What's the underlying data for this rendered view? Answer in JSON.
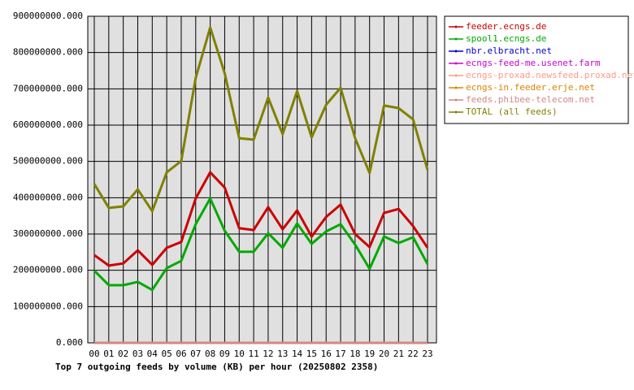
{
  "chart_data": {
    "type": "line",
    "title": "Top 7 outgoing feeds by volume (KB) per hour (20250802 2358)",
    "categories": [
      "00",
      "01",
      "02",
      "03",
      "04",
      "05",
      "06",
      "07",
      "08",
      "09",
      "10",
      "11",
      "12",
      "13",
      "14",
      "15",
      "16",
      "17",
      "18",
      "19",
      "20",
      "21",
      "22",
      "23"
    ],
    "series": [
      {
        "name": "feeder.ecngs.de",
        "color": "#cc0000",
        "values": [
          242000000,
          213000000,
          219000000,
          255000000,
          215000000,
          262000000,
          278000000,
          398000000,
          470000000,
          428000000,
          316000000,
          311000000,
          374000000,
          313000000,
          365000000,
          293000000,
          347000000,
          381000000,
          300000000,
          264000000,
          358000000,
          369000000,
          322000000,
          262000000
        ]
      },
      {
        "name": "spool1.ecngs.de",
        "color": "#00aa00",
        "values": [
          199000000,
          159000000,
          159000000,
          168000000,
          146000000,
          206000000,
          226000000,
          327000000,
          398000000,
          309000000,
          251000000,
          251000000,
          302000000,
          262000000,
          329000000,
          273000000,
          307000000,
          327000000,
          271000000,
          204000000,
          293000000,
          275000000,
          291000000,
          217000000
        ]
      },
      {
        "name": "nbr.elbracht.net",
        "color": "#0000cc",
        "values": [
          0,
          0,
          0,
          0,
          0,
          0,
          0,
          0,
          0,
          0,
          0,
          0,
          0,
          0,
          0,
          0,
          0,
          0,
          0,
          0,
          0,
          0,
          0,
          0
        ]
      },
      {
        "name": "ecngs-feed-me.usenet.farm",
        "color": "#cc00cc",
        "values": [
          0,
          0,
          0,
          0,
          0,
          0,
          0,
          0,
          0,
          0,
          0,
          0,
          0,
          0,
          0,
          0,
          0,
          0,
          0,
          0,
          0,
          0,
          0,
          0
        ]
      },
      {
        "name": "ecngs-proxad.newsfeed.proxad.net",
        "color": "#ff9988",
        "values": [
          0,
          0,
          0,
          0,
          0,
          0,
          0,
          0,
          0,
          0,
          0,
          0,
          0,
          0,
          0,
          0,
          0,
          0,
          0,
          0,
          0,
          0,
          0,
          0
        ]
      },
      {
        "name": "ecngs-in.feeder.erje.net",
        "color": "#e08000",
        "values": [
          0,
          0,
          0,
          0,
          0,
          0,
          0,
          0,
          0,
          0,
          0,
          0,
          0,
          0,
          0,
          0,
          0,
          0,
          0,
          0,
          0,
          0,
          0,
          0
        ]
      },
      {
        "name": "feeds.phibee-telecom.net",
        "color": "#d08888",
        "values": [
          0,
          0,
          0,
          0,
          0,
          0,
          0,
          0,
          0,
          0,
          0,
          0,
          0,
          0,
          0,
          0,
          0,
          0,
          0,
          0,
          0,
          0,
          0,
          0
        ]
      },
      {
        "name": "TOTAL (all feeds)",
        "color": "#808000",
        "values": [
          438000000,
          372000000,
          376000000,
          423000000,
          363000000,
          470000000,
          501000000,
          730000000,
          869000000,
          743000000,
          564000000,
          560000000,
          676000000,
          575000000,
          694000000,
          566000000,
          656000000,
          703000000,
          564000000,
          468000000,
          654000000,
          647000000,
          616000000,
          477000000
        ]
      }
    ],
    "ylim": [
      0,
      900000000
    ],
    "yticks": [
      {
        "value": 0,
        "label": "0.000"
      },
      {
        "value": 100000000,
        "label": "100000000.000"
      },
      {
        "value": 200000000,
        "label": "200000000.000"
      },
      {
        "value": 300000000,
        "label": "300000000.000"
      },
      {
        "value": 400000000,
        "label": "400000000.000"
      },
      {
        "value": 500000000,
        "label": "500000000.000"
      },
      {
        "value": 600000000,
        "label": "600000000.000"
      },
      {
        "value": 700000000,
        "label": "700000000.000"
      },
      {
        "value": 800000000,
        "label": "800000000.000"
      },
      {
        "value": 900000000,
        "label": "900000000.000"
      }
    ],
    "grid": true,
    "legend": "right"
  }
}
